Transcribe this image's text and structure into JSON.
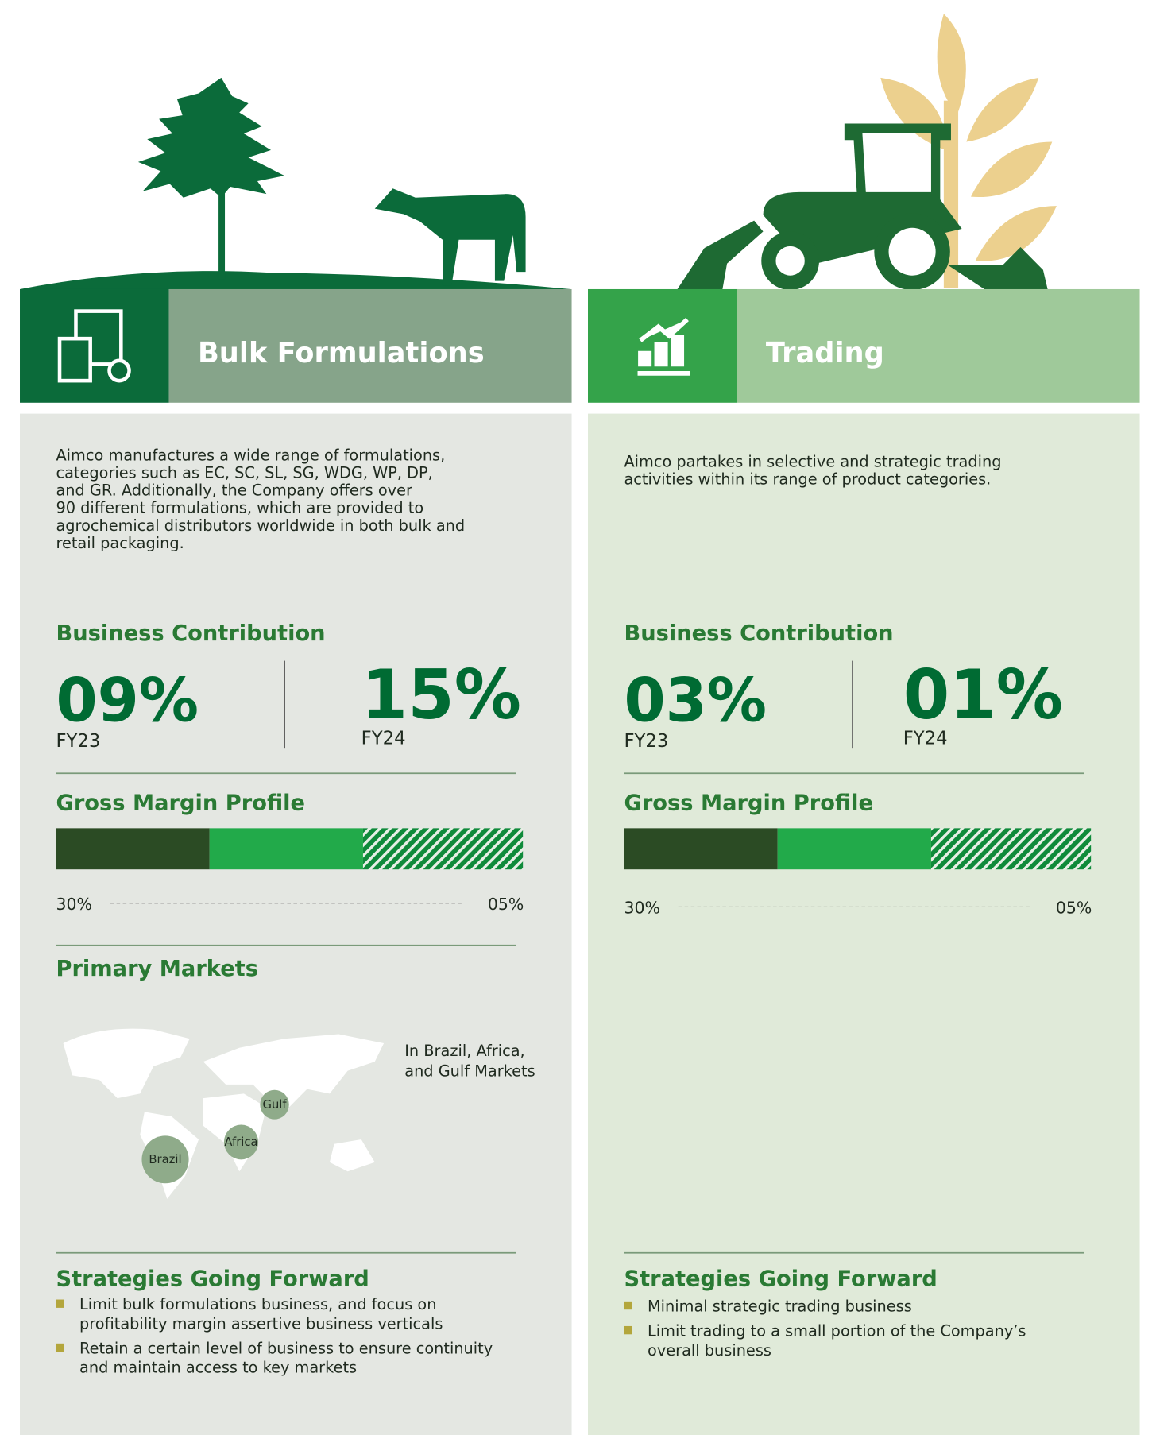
{
  "panels": [
    {
      "title": "Bulk Formulations",
      "description": [
        "Aimco manufactures a wide range of formulations,",
        "categories such as EC, SC, SL, SG, WDG, WP, DP,",
        "and GR. Additionally, the Company offers over",
        "90 different formulations, which are provided to",
        "agrochemical distributors worldwide in both bulk and",
        "retail packaging."
      ],
      "contribution_heading": "Business Contribution",
      "contribution": [
        {
          "value": "09%",
          "period": "FY23"
        },
        {
          "value": "15%",
          "period": "FY24"
        }
      ],
      "margin_heading": "Gross Margin Profile",
      "margin_labels": [
        "30%",
        "05%"
      ],
      "markets_heading": "Primary Markets",
      "markets_note": [
        "In Brazil, Africa,",
        "and Gulf Markets"
      ],
      "markets": [
        "Brazil",
        "Africa",
        "Gulf"
      ],
      "strategies_heading": "Strategies Going Forward",
      "strategies": [
        [
          "Limit bulk formulations business, and focus on",
          "profitability margin assertive business verticals"
        ],
        [
          "Retain a certain level of business to ensure continuity",
          "and maintain access to key markets"
        ]
      ]
    },
    {
      "title": "Trading",
      "description": [
        "Aimco partakes in selective and strategic trading",
        "activities within its range of product categories."
      ],
      "contribution_heading": "Business Contribution",
      "contribution": [
        {
          "value": "03%",
          "period": "FY23"
        },
        {
          "value": "01%",
          "period": "FY24"
        }
      ],
      "margin_heading": "Gross Margin Profile",
      "margin_labels": [
        "30%",
        "05%"
      ],
      "strategies_heading": "Strategies Going Forward",
      "strategies": [
        [
          "Minimal strategic trading business"
        ],
        [
          "Limit trading to a small portion of the Company’s",
          "overall business"
        ]
      ]
    }
  ]
}
